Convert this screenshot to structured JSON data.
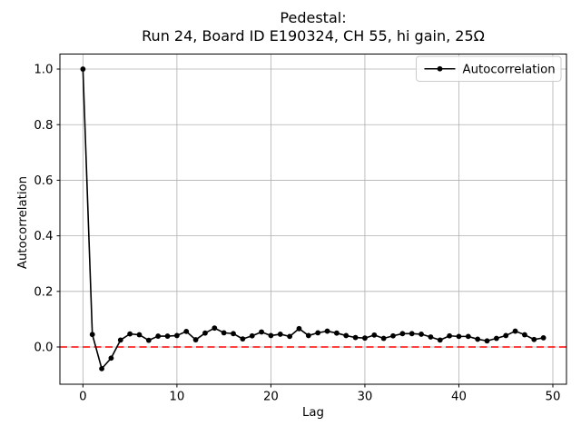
{
  "figure": {
    "title_line1": "Pedestal:",
    "title_line2": "Run 24, Board ID E190324, CH 55, hi gain, 25Ω"
  },
  "chart_data": {
    "type": "line",
    "title": "Pedestal:\nRun 24, Board ID E190324, CH 55, hi gain, 25Ω",
    "xlabel": "Lag",
    "ylabel": "Autocorrelation",
    "grid": true,
    "legend_position": "upper right",
    "legend_label": "Autocorrelation",
    "xlim": [
      -2.45,
      51.45
    ],
    "ylim": [
      -0.134,
      1.054
    ],
    "x_ticks": [
      0,
      10,
      20,
      30,
      40,
      50
    ],
    "x_tick_labels": [
      "0",
      "10",
      "20",
      "30",
      "40",
      "50"
    ],
    "y_ticks": [
      0.0,
      0.2,
      0.4,
      0.6,
      0.8,
      1.0
    ],
    "y_tick_labels": [
      "0.0",
      "0.2",
      "0.4",
      "0.6",
      "0.8",
      "1.0"
    ],
    "reference_line": {
      "y": 0.0,
      "color": "#ff0000",
      "style": "dashed"
    },
    "colors": {
      "series": "#000000",
      "grid": "#b0b0b0",
      "spine": "#000000",
      "zero_line": "#ff0000"
    },
    "series": [
      {
        "name": "Autocorrelation",
        "marker": "circle",
        "x": [
          0,
          1,
          2,
          3,
          4,
          5,
          6,
          7,
          8,
          9,
          10,
          11,
          12,
          13,
          14,
          15,
          16,
          17,
          18,
          19,
          20,
          21,
          22,
          23,
          24,
          25,
          26,
          27,
          28,
          29,
          30,
          31,
          32,
          33,
          34,
          35,
          36,
          37,
          38,
          39,
          40,
          41,
          42,
          43,
          44,
          45,
          46,
          47,
          48,
          49
        ],
        "y": [
          1.0,
          0.045,
          -0.078,
          -0.04,
          0.025,
          0.047,
          0.044,
          0.024,
          0.039,
          0.039,
          0.041,
          0.056,
          0.026,
          0.05,
          0.068,
          0.051,
          0.048,
          0.029,
          0.04,
          0.054,
          0.041,
          0.046,
          0.038,
          0.066,
          0.041,
          0.051,
          0.057,
          0.05,
          0.041,
          0.034,
          0.032,
          0.043,
          0.031,
          0.04,
          0.048,
          0.048,
          0.046,
          0.036,
          0.025,
          0.04,
          0.038,
          0.038,
          0.028,
          0.022,
          0.031,
          0.041,
          0.057,
          0.044,
          0.027,
          0.033
        ]
      }
    ]
  }
}
